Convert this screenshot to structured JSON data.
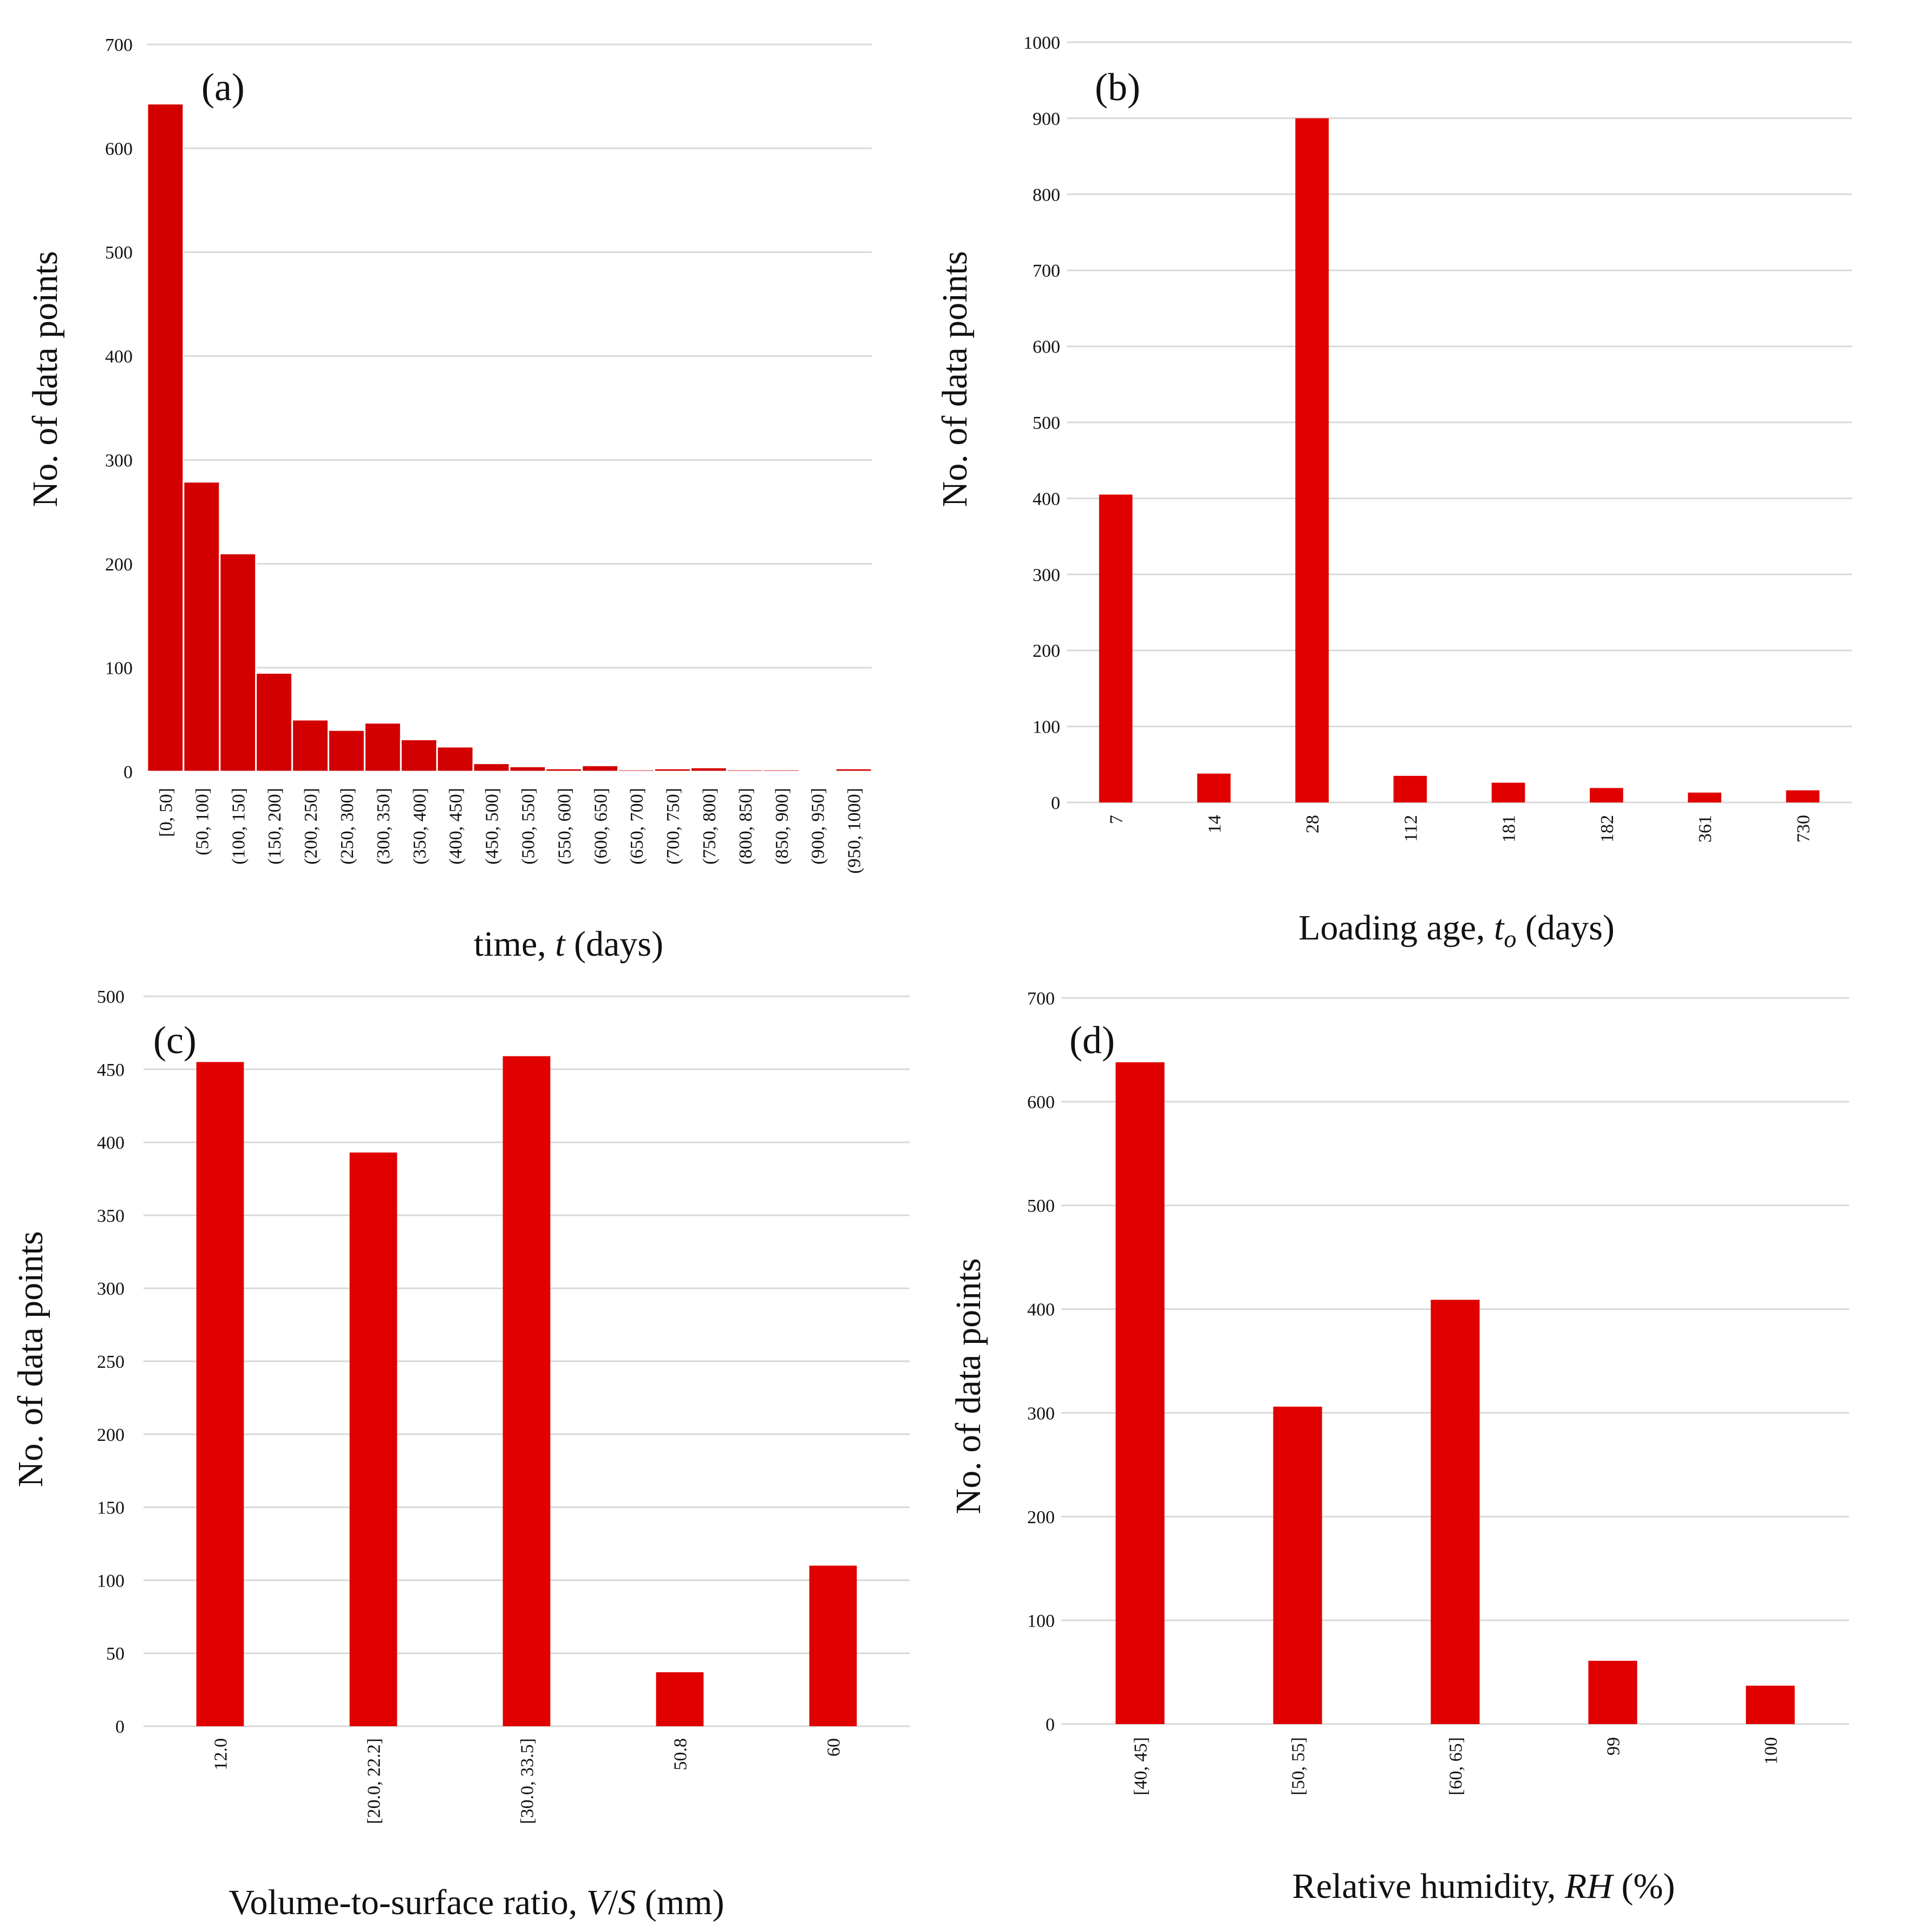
{
  "colors": {
    "bar": "#E00000",
    "bar_hist": "#D20000",
    "grid": "#D9D9D9",
    "text": "#111111"
  },
  "chart_data": [
    {
      "id": "a",
      "type": "bar",
      "panel_label": "(a)",
      "xlabel": "time, t (days)",
      "xlabel_parts": [
        "time, ",
        "t",
        " (days)"
      ],
      "ylabel": "No. of data points",
      "ylim": [
        0,
        700
      ],
      "yticks": [
        0,
        100,
        200,
        300,
        400,
        500,
        600,
        700
      ],
      "categories": [
        "[0, 50]",
        "(50, 100]",
        "(100, 150]",
        "(150, 200]",
        "(200, 250]",
        "(250, 300]",
        "(300, 350]",
        "(350, 400]",
        "(400, 450]",
        "(450, 500]",
        "(500, 550]",
        "(550, 600]",
        "(600, 650]",
        "(650, 700]",
        "(700, 750]",
        "(750, 800]",
        "(800, 850]",
        "(850, 900]",
        "(900, 950]",
        "(950, 1000]"
      ],
      "values": [
        643,
        279,
        210,
        95,
        50,
        40,
        47,
        31,
        24,
        8,
        5,
        3,
        6,
        2,
        3,
        4,
        2,
        2,
        1,
        3
      ]
    },
    {
      "id": "b",
      "type": "bar",
      "panel_label": "(b)",
      "xlabel": "Loading age, to (days)",
      "xlabel_parts": [
        "Loading age, ",
        "t",
        "o",
        " (days)"
      ],
      "ylabel": "No. of data points",
      "ylim": [
        0,
        1000
      ],
      "yticks": [
        0,
        100,
        200,
        300,
        400,
        500,
        600,
        700,
        800,
        900,
        1000
      ],
      "categories": [
        "7",
        "14",
        "28",
        "112",
        "181",
        "182",
        "361",
        "730"
      ],
      "values": [
        405,
        38,
        900,
        35,
        26,
        19,
        13,
        16
      ]
    },
    {
      "id": "c",
      "type": "bar",
      "panel_label": "(c)",
      "xlabel": "Volume-to-surface ratio, V/S (mm)",
      "xlabel_parts": [
        "Volume-to-surface ratio, ",
        "V",
        "/",
        "S",
        " (mm)"
      ],
      "ylabel": "No. of data points",
      "ylim": [
        0,
        500
      ],
      "yticks": [
        0,
        50,
        100,
        150,
        200,
        250,
        300,
        350,
        400,
        450,
        500
      ],
      "categories": [
        "12.0",
        "[20.0, 22.2]",
        "[30.0, 33.5]",
        "50.8",
        "60"
      ],
      "values": [
        455,
        393,
        459,
        37,
        110
      ]
    },
    {
      "id": "d",
      "type": "bar",
      "panel_label": "(d)",
      "xlabel": "Relative humidity, RH (%)",
      "xlabel_parts": [
        "Relative humidity, ",
        "RH",
        " (%)"
      ],
      "ylabel": "No. of data points",
      "ylim": [
        0,
        700
      ],
      "yticks": [
        0,
        100,
        200,
        300,
        400,
        500,
        600,
        700
      ],
      "categories": [
        "[40, 45]",
        "[50, 55]",
        "[60, 65]",
        "99",
        "100"
      ],
      "values": [
        638,
        306,
        409,
        61,
        37
      ]
    }
  ]
}
